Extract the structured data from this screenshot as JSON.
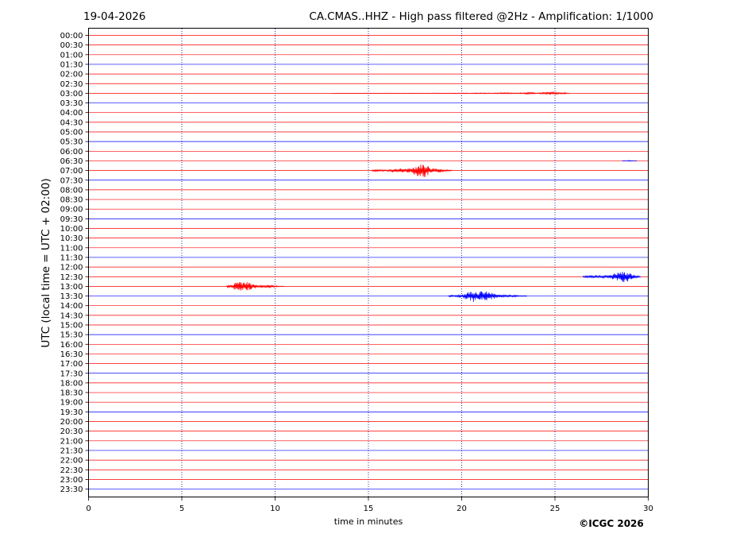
{
  "header": {
    "date": "19-04-2026",
    "title": "CA.CMAS..HHZ - High pass filtered @2Hz - Amplification: 1/1000"
  },
  "footer": {
    "copyright": "©ICGC 2026"
  },
  "colors": {
    "trace_a": "#ff0000",
    "trace_b": "#0000ff",
    "grid": "#000080",
    "axis": "#000000"
  },
  "chart_data": {
    "type": "line",
    "title": "CA.CMAS..HHZ - High pass filtered @2Hz - Amplification: 1/1000",
    "xlabel": "time in minutes",
    "ylabel": "UTC (local time = UTC + 02:00)",
    "xlim": [
      0,
      30
    ],
    "xticks": [
      0,
      5,
      10,
      15,
      20,
      25,
      30
    ],
    "xgrid": [
      5,
      10,
      15,
      20,
      25
    ],
    "rows": [
      "00:00",
      "00:30",
      "01:00",
      "01:30",
      "02:00",
      "02:30",
      "03:00",
      "03:30",
      "04:00",
      "04:30",
      "05:00",
      "05:30",
      "06:00",
      "06:30",
      "07:00",
      "07:30",
      "08:00",
      "08:30",
      "09:00",
      "09:30",
      "10:00",
      "10:30",
      "11:00",
      "11:30",
      "12:00",
      "12:30",
      "13:00",
      "13:30",
      "14:00",
      "14:30",
      "15:00",
      "15:30",
      "16:00",
      "16:30",
      "17:00",
      "17:30",
      "18:00",
      "18:30",
      "19:00",
      "19:30",
      "20:00",
      "20:30",
      "21:00",
      "21:30",
      "22:00",
      "22:30",
      "23:00",
      "23:30"
    ],
    "row_colors": [
      "red",
      "red",
      "red",
      "blue"
    ],
    "events": [
      {
        "row": "07:00",
        "start_min": 15.2,
        "peak_min": 18.1,
        "end_min": 19.5,
        "peak_amplitude": 1.0,
        "color": "red"
      },
      {
        "row": "12:30",
        "start_min": 26.5,
        "peak_min": 28.9,
        "end_min": 29.6,
        "peak_amplitude": 1.0,
        "color": "blue"
      },
      {
        "row": "13:00",
        "start_min": 7.4,
        "peak_min": 7.9,
        "end_min": 10.5,
        "peak_amplitude": 1.0,
        "color": "red"
      },
      {
        "row": "13:30",
        "start_min": 19.3,
        "peak_min": 20.7,
        "end_min": 23.5,
        "peak_amplitude": 1.0,
        "color": "blue"
      },
      {
        "row": "03:00",
        "start_min": 13.0,
        "peak_min": 25.5,
        "end_min": 25.8,
        "peak_amplitude": 0.15,
        "color": "red"
      },
      {
        "row": "06:30",
        "start_min": 28.6,
        "peak_min": 29.0,
        "end_min": 29.4,
        "peak_amplitude": 0.08,
        "color": "blue"
      }
    ]
  }
}
